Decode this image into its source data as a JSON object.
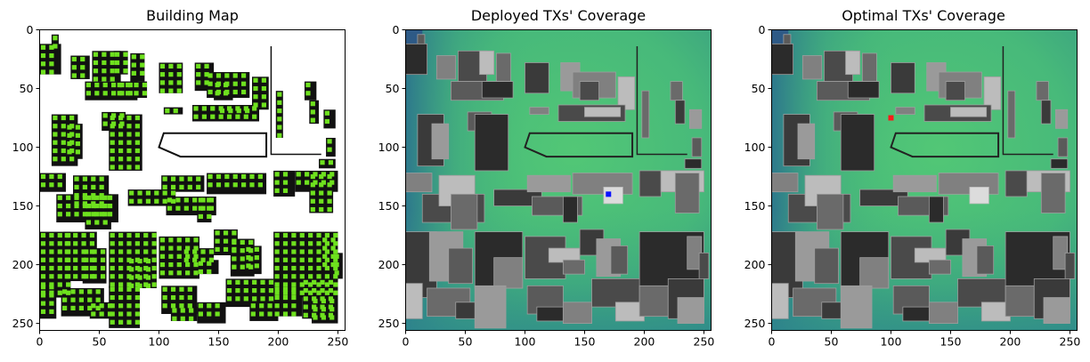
{
  "chart_data": [
    {
      "type": "heatmap",
      "title": "Building Map",
      "xlabel": "",
      "ylabel": "",
      "xlim": [
        0,
        256
      ],
      "ylim": [
        256,
        0
      ],
      "x_ticks": [
        "0",
        "50",
        "100",
        "150",
        "200",
        "250"
      ],
      "y_ticks": [
        "0",
        "50",
        "100",
        "150",
        "200",
        "250"
      ],
      "background": "white",
      "colors": {
        "building": "#111111",
        "background": "#ffffff",
        "marker": "#6ee11e"
      }
    },
    {
      "type": "heatmap",
      "title": "Deployed TXs' Coverage",
      "xlabel": "",
      "ylabel": "",
      "xlim": [
        0,
        256
      ],
      "ylim": [
        256,
        0
      ],
      "x_ticks": [
        "0",
        "50",
        "100",
        "150",
        "200",
        "250"
      ],
      "y_ticks": [
        "0",
        "50",
        "100",
        "150",
        "200",
        "250"
      ],
      "tx_marker": {
        "x": 170,
        "y": 140,
        "color": "#0a12ff"
      },
      "colors": {
        "coverage_high": "#4cc27a",
        "coverage_low": "#2c7d8f",
        "building_gray": "#5e5e5e"
      }
    },
    {
      "type": "heatmap",
      "title": "Optimal TXs' Coverage",
      "xlabel": "",
      "ylabel": "",
      "xlim": [
        0,
        256
      ],
      "ylim": [
        256,
        0
      ],
      "x_ticks": [
        "0",
        "50",
        "100",
        "150",
        "200",
        "250"
      ],
      "y_ticks": [
        "0",
        "50",
        "100",
        "150",
        "200",
        "250"
      ],
      "tx_marker": {
        "x": 100,
        "y": 75,
        "color": "#ff1a1a"
      },
      "colors": {
        "coverage_high": "#4cc27a",
        "coverage_low": "#2c7d8f",
        "building_gray": "#5e5e5e"
      }
    }
  ]
}
